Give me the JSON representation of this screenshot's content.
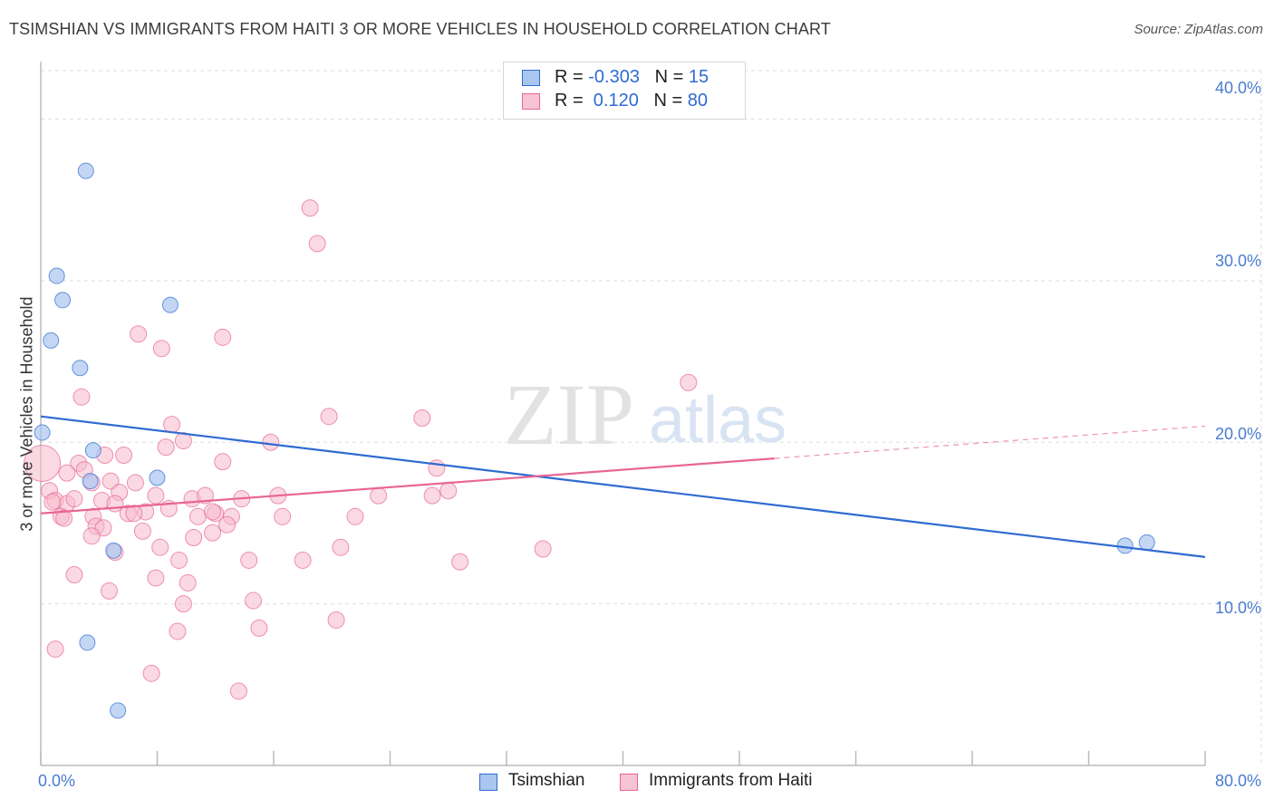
{
  "title": "TSIMSHIAN VS IMMIGRANTS FROM HAITI 3 OR MORE VEHICLES IN HOUSEHOLD CORRELATION CHART",
  "source": "Source: ZipAtlas.com",
  "watermark": "ZIPatlas",
  "colors": {
    "blue": "#2f6bd1",
    "blue_fill": "#a9c6ef",
    "pink": "#e86592",
    "pink_fill": "#f6b9cc",
    "grid": "#dddddd",
    "tick_text": "#4a7bd0"
  },
  "legend": {
    "rows": [
      {
        "r_label": "R = ",
        "r_value": "-0.303",
        "n_label": "N = ",
        "n_value": "15"
      },
      {
        "r_label": "R = ",
        "r_value": " 0.120",
        "n_label": "N = ",
        "n_value": "80"
      }
    ]
  },
  "chart_data": {
    "type": "scatter",
    "title": "TSIMSHIAN VS IMMIGRANTS FROM HAITI 3 OR MORE VEHICLES IN HOUSEHOLD CORRELATION CHART",
    "xlabel": "",
    "ylabel": "3 or more Vehicles in Household",
    "xlim": [
      0,
      80
    ],
    "ylim": [
      0,
      43
    ],
    "x_tick_labels": [
      "0.0%",
      "80.0%"
    ],
    "y_ticks": [
      10,
      20,
      30,
      40
    ],
    "y_tick_labels": [
      "10.0%",
      "20.0%",
      "30.0%",
      "40.0%"
    ],
    "series": [
      {
        "name": "Tsimshian",
        "r": -0.303,
        "n": 15,
        "trend": {
          "x0": 0,
          "y0": 21.6,
          "x1": 80,
          "y1": 12.9
        },
        "points": [
          [
            3.1,
            36.8
          ],
          [
            1.1,
            30.3
          ],
          [
            1.5,
            28.8
          ],
          [
            8.9,
            28.5
          ],
          [
            0.7,
            26.3
          ],
          [
            2.7,
            24.6
          ],
          [
            0.1,
            20.6
          ],
          [
            3.6,
            19.5
          ],
          [
            8.0,
            17.8
          ],
          [
            3.4,
            17.6
          ],
          [
            5.0,
            13.3
          ],
          [
            3.2,
            7.6
          ],
          [
            5.3,
            3.4
          ],
          [
            74.5,
            13.6
          ],
          [
            76.0,
            13.8
          ]
        ]
      },
      {
        "name": "Immigrants from Haiti",
        "r": 0.12,
        "n": 80,
        "trend": {
          "x0": 0,
          "y0": 15.6,
          "x1": 50.4,
          "y1": 19.0
        },
        "trend_dashed": {
          "x0": 50.4,
          "y0": 19.0,
          "x1": 80,
          "y1": 21.0
        },
        "points": [
          [
            18.5,
            34.5
          ],
          [
            19.0,
            32.3
          ],
          [
            6.7,
            26.7
          ],
          [
            12.5,
            26.5
          ],
          [
            8.3,
            25.8
          ],
          [
            44.5,
            23.7
          ],
          [
            2.8,
            22.8
          ],
          [
            19.8,
            21.6
          ],
          [
            26.2,
            21.5
          ],
          [
            9.0,
            21.1
          ],
          [
            0.1,
            18.7
          ],
          [
            8.6,
            19.7
          ],
          [
            9.8,
            20.1
          ],
          [
            15.8,
            20.0
          ],
          [
            4.4,
            19.2
          ],
          [
            5.7,
            19.2
          ],
          [
            12.5,
            18.8
          ],
          [
            27.2,
            18.4
          ],
          [
            2.6,
            18.7
          ],
          [
            3.0,
            18.3
          ],
          [
            1.8,
            18.1
          ],
          [
            4.8,
            17.6
          ],
          [
            6.5,
            17.5
          ],
          [
            3.5,
            17.5
          ],
          [
            5.4,
            16.9
          ],
          [
            0.6,
            17.0
          ],
          [
            1.0,
            16.4
          ],
          [
            1.8,
            16.2
          ],
          [
            2.3,
            16.5
          ],
          [
            4.2,
            16.4
          ],
          [
            5.1,
            16.2
          ],
          [
            7.2,
            15.7
          ],
          [
            8.8,
            15.9
          ],
          [
            10.4,
            16.5
          ],
          [
            11.3,
            16.7
          ],
          [
            13.8,
            16.5
          ],
          [
            16.3,
            16.7
          ],
          [
            23.2,
            16.7
          ],
          [
            26.9,
            16.7
          ],
          [
            28.0,
            17.0
          ],
          [
            7.9,
            16.7
          ],
          [
            0.8,
            16.3
          ],
          [
            1.4,
            15.4
          ],
          [
            3.6,
            15.4
          ],
          [
            6.0,
            15.6
          ],
          [
            6.4,
            15.6
          ],
          [
            10.8,
            15.4
          ],
          [
            12.0,
            15.6
          ],
          [
            11.8,
            15.7
          ],
          [
            13.1,
            15.4
          ],
          [
            16.6,
            15.4
          ],
          [
            21.6,
            15.4
          ],
          [
            1.6,
            15.3
          ],
          [
            3.8,
            14.8
          ],
          [
            4.3,
            14.7
          ],
          [
            12.8,
            14.9
          ],
          [
            7.0,
            14.5
          ],
          [
            11.8,
            14.4
          ],
          [
            3.5,
            14.2
          ],
          [
            10.5,
            14.1
          ],
          [
            5.1,
            13.2
          ],
          [
            8.2,
            13.5
          ],
          [
            20.6,
            13.5
          ],
          [
            34.5,
            13.4
          ],
          [
            9.5,
            12.7
          ],
          [
            14.3,
            12.7
          ],
          [
            18.0,
            12.7
          ],
          [
            28.8,
            12.6
          ],
          [
            2.3,
            11.8
          ],
          [
            7.9,
            11.6
          ],
          [
            10.1,
            11.3
          ],
          [
            4.7,
            10.8
          ],
          [
            14.6,
            10.2
          ],
          [
            9.8,
            10.0
          ],
          [
            20.3,
            9.0
          ],
          [
            15.0,
            8.5
          ],
          [
            9.4,
            8.3
          ],
          [
            1.0,
            7.2
          ],
          [
            7.6,
            5.7
          ],
          [
            13.6,
            4.6
          ]
        ]
      }
    ]
  },
  "bottom_legend": [
    "Tsimshian",
    "Immigrants from Haiti"
  ]
}
